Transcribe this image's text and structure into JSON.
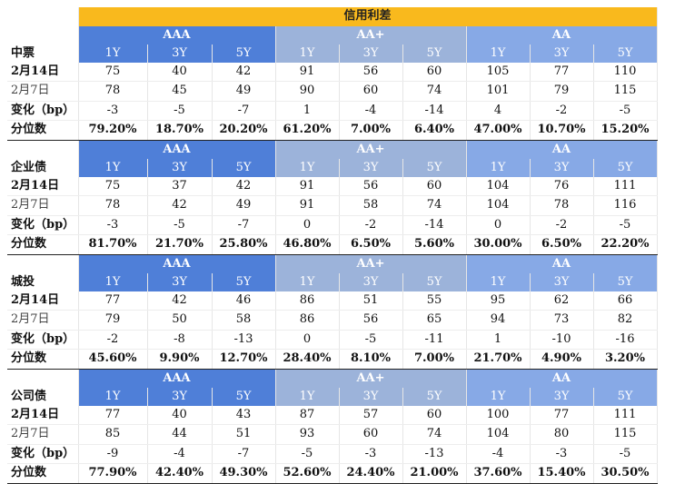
{
  "title": "信用利差",
  "grades": [
    "AAA",
    "AA+",
    "AA"
  ],
  "tenors": [
    "1Y",
    "3Y",
    "5Y"
  ],
  "row_labels": {
    "d1": "2月14日",
    "d2": "2月7日",
    "chg": "变化（bp）",
    "pct": "分位数"
  },
  "colors": {
    "header": "#f9b91d",
    "aaa": "#4f7fd8",
    "aa_plus": "#9cb3da",
    "aa": "#87a9e6"
  },
  "sections": [
    {
      "name": "中票",
      "d1": [
        "75",
        "40",
        "42",
        "91",
        "56",
        "60",
        "105",
        "77",
        "110"
      ],
      "d2": [
        "78",
        "45",
        "49",
        "90",
        "60",
        "74",
        "101",
        "79",
        "115"
      ],
      "chg": [
        "-3",
        "-5",
        "-7",
        "1",
        "-4",
        "-14",
        "4",
        "-2",
        "-5"
      ],
      "pct": [
        "79.20%",
        "18.70%",
        "20.20%",
        "61.20%",
        "7.00%",
        "6.40%",
        "47.00%",
        "10.70%",
        "15.20%"
      ]
    },
    {
      "name": "企业债",
      "d1": [
        "75",
        "37",
        "42",
        "91",
        "56",
        "60",
        "104",
        "76",
        "111"
      ],
      "d2": [
        "78",
        "42",
        "49",
        "91",
        "58",
        "74",
        "104",
        "78",
        "116"
      ],
      "chg": [
        "-3",
        "-5",
        "-7",
        "0",
        "-2",
        "-14",
        "0",
        "-2",
        "-5"
      ],
      "pct": [
        "81.70%",
        "21.70%",
        "25.80%",
        "46.80%",
        "6.50%",
        "5.60%",
        "30.00%",
        "6.50%",
        "22.20%"
      ]
    },
    {
      "name": "城投",
      "d1": [
        "77",
        "42",
        "46",
        "86",
        "51",
        "55",
        "95",
        "62",
        "66"
      ],
      "d2": [
        "79",
        "50",
        "58",
        "86",
        "56",
        "65",
        "94",
        "73",
        "82"
      ],
      "chg": [
        "-2",
        "-8",
        "-13",
        "0",
        "-5",
        "-11",
        "1",
        "-10",
        "-16"
      ],
      "pct": [
        "45.60%",
        "9.90%",
        "12.70%",
        "28.40%",
        "8.10%",
        "7.00%",
        "21.70%",
        "4.90%",
        "3.20%"
      ]
    },
    {
      "name": "公司债",
      "d1": [
        "77",
        "40",
        "43",
        "87",
        "57",
        "60",
        "100",
        "77",
        "111"
      ],
      "d2": [
        "85",
        "44",
        "51",
        "93",
        "60",
        "74",
        "104",
        "80",
        "115"
      ],
      "chg": [
        "-9",
        "-4",
        "-7",
        "-5",
        "-3",
        "-13",
        "-4",
        "-3",
        "-5"
      ],
      "pct": [
        "77.90%",
        "42.40%",
        "49.30%",
        "52.60%",
        "24.40%",
        "21.00%",
        "37.60%",
        "15.40%",
        "30.50%"
      ]
    }
  ]
}
